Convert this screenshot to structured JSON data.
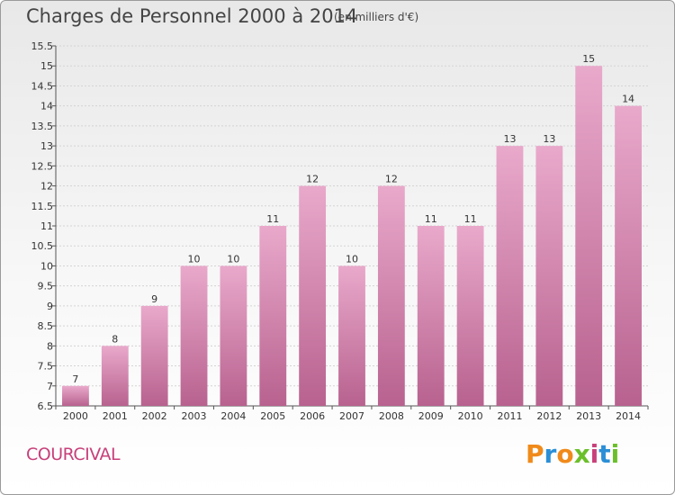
{
  "header": {
    "title": "Charges de Personnel 2000 à 2014",
    "subtitle": "(en milliers d'€)"
  },
  "footer": {
    "town": "COURCIVAL",
    "logo": [
      "P",
      "r",
      "o",
      "x",
      "i",
      "t",
      "i"
    ]
  },
  "colors": {
    "bar_top": "#e9a9cb",
    "bar_bottom": "#b8628f",
    "town": "#c8407a",
    "logo": [
      "#f08a1a",
      "#2b8fd6",
      "#f08a1a",
      "#6bbf2a",
      "#c8407a",
      "#2b8fd6",
      "#6bbf2a"
    ]
  },
  "chart_data": {
    "type": "bar",
    "title": "Charges de Personnel 2000 à 2014",
    "subtitle": "(en milliers d'€)",
    "categories": [
      "2000",
      "2001",
      "2002",
      "2003",
      "2004",
      "2005",
      "2006",
      "2007",
      "2008",
      "2009",
      "2010",
      "2011",
      "2012",
      "2013",
      "2014"
    ],
    "values": [
      7,
      8,
      9,
      10,
      10,
      11,
      12,
      10,
      12,
      11,
      11,
      13,
      13,
      15,
      14
    ],
    "value_labels": [
      "7",
      "8",
      "9",
      "10",
      "10",
      "11",
      "12",
      "10",
      "12",
      "11",
      "11",
      "13",
      "13",
      "15",
      "14"
    ],
    "ylim": [
      6.5,
      15.5
    ],
    "yticks": [
      6.5,
      7,
      7.5,
      8,
      8.5,
      9,
      9.5,
      10,
      10.5,
      11,
      11.5,
      12,
      12.5,
      13,
      13.5,
      14,
      14.5,
      15,
      15.5
    ],
    "ytick_labels": [
      "6.5",
      "7",
      "7.5",
      "8",
      "8.5",
      "9",
      "9.5",
      "10",
      "10.5",
      "11",
      "11.5",
      "12",
      "12.5",
      "13",
      "13.5",
      "14",
      "14.5",
      "15",
      "15.5"
    ],
    "grid": true,
    "xlabel": "",
    "ylabel": ""
  }
}
